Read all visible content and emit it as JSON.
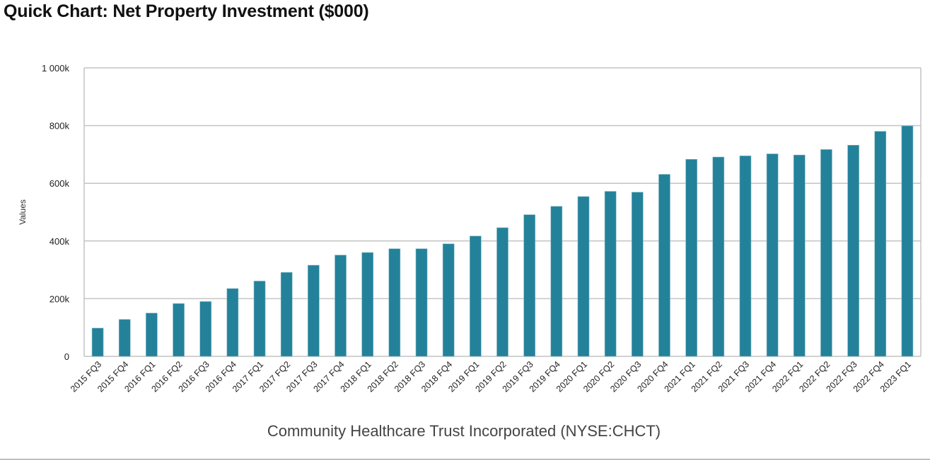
{
  "title": "Quick Chart: Net Property Investment ($000)",
  "chart_data": {
    "type": "bar",
    "title": "Quick Chart: Net Property Investment ($000)",
    "xlabel": "Community Healthcare Trust Incorporated (NYSE:CHCT)",
    "ylabel": "Values",
    "ylim": [
      0,
      1000
    ],
    "yticks": [
      0,
      200,
      400,
      600,
      800,
      1000
    ],
    "ytick_labels": [
      "0",
      "200k",
      "400k",
      "600k",
      "800k",
      "1 000k"
    ],
    "grid": true,
    "bar_color": "#23829A",
    "categories": [
      "2015 FQ3",
      "2015 FQ4",
      "2016 FQ1",
      "2016 FQ2",
      "2016 FQ3",
      "2016 FQ4",
      "2017 FQ1",
      "2017 FQ2",
      "2017 FQ3",
      "2017 FQ4",
      "2018 FQ1",
      "2018 FQ2",
      "2018 FQ3",
      "2018 FQ4",
      "2019 FQ1",
      "2019 FQ2",
      "2019 FQ3",
      "2019 FQ4",
      "2020 FQ1",
      "2020 FQ2",
      "2020 FQ3",
      "2020 FQ4",
      "2021 FQ1",
      "2021 FQ2",
      "2021 FQ3",
      "2021 FQ4",
      "2022 FQ1",
      "2022 FQ2",
      "2022 FQ3",
      "2022 FQ4",
      "2023 FQ1"
    ],
    "values": [
      98,
      128,
      150,
      183,
      190,
      235,
      261,
      291,
      316,
      351,
      360,
      373,
      373,
      390,
      417,
      446,
      491,
      520,
      554,
      572,
      569,
      631,
      683,
      691,
      695,
      702,
      698,
      717,
      732,
      780,
      799
    ]
  }
}
